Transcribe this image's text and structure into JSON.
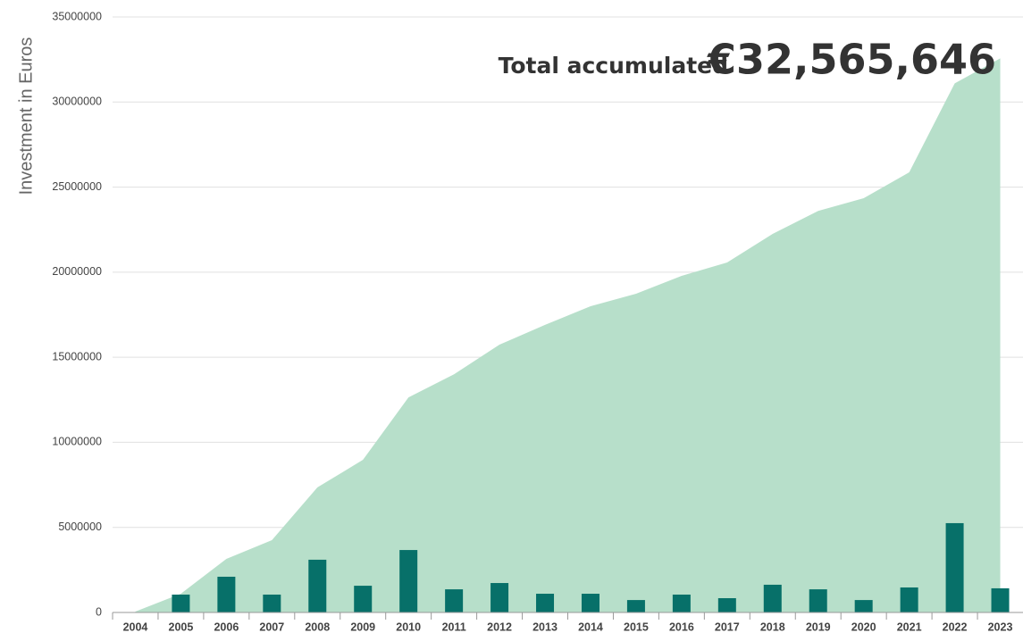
{
  "chart_data": {
    "type": "bar",
    "y_label": "Investment in Euros",
    "annotation_label": "Total accumulated",
    "annotation_value": "€32,565,646",
    "categories": [
      "2004",
      "2005",
      "2006",
      "2007",
      "2008",
      "2009",
      "2010",
      "2011",
      "2012",
      "2013",
      "2014",
      "2015",
      "2016",
      "2017",
      "2018",
      "2019",
      "2020",
      "2021",
      "2022",
      "2023"
    ],
    "series": [
      {
        "type": "area",
        "color": "#b7dfca",
        "values": [
          50000,
          1100000,
          3150000,
          4250000,
          7350000,
          8970000,
          12640000,
          14000000,
          15740000,
          16900000,
          18000000,
          18730000,
          19780000,
          20570000,
          22250000,
          23600000,
          24350000,
          25870000,
          31100000,
          32565646
        ]
      },
      {
        "type": "bar",
        "color": "#077069",
        "values": [
          0,
          1050000,
          2100000,
          1050000,
          3100000,
          1570000,
          3670000,
          1360000,
          1730000,
          1100000,
          1100000,
          730000,
          1050000,
          840000,
          1630000,
          1360000,
          730000,
          1470000,
          5250000,
          1420000
        ]
      }
    ],
    "ylim": [
      0,
      35000000
    ],
    "yticks": [
      0,
      5000000,
      10000000,
      15000000,
      20000000,
      25000000,
      30000000,
      35000000
    ],
    "grid": true
  }
}
